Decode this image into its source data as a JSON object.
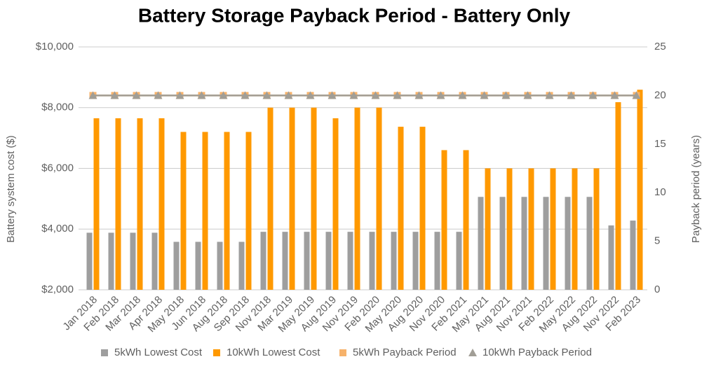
{
  "chart_data": {
    "type": "bar-line",
    "title": "Battery Storage Payback Period - Battery Only",
    "y_label": "Battery system cost ($)",
    "y2_label": "Payback period (years)",
    "categories": [
      "Jan 2018",
      "Feb 2018",
      "Mar 2018",
      "Apr 2018",
      "May 2018",
      "Jun 2018",
      "Aug 2018",
      "Sep 2018",
      "Nov 2018",
      "Mar 2019",
      "May 2019",
      "Aug 2019",
      "Nov 2019",
      "Feb 2020",
      "May 2020",
      "Aug 2020",
      "Nov 2020",
      "Feb 2021",
      "May 2021",
      "Aug 2021",
      "Nov 2021",
      "Feb 2022",
      "May 2022",
      "Aug 2022",
      "Nov 2022",
      "Feb 2023"
    ],
    "series": [
      {
        "name": "5kWh Lowest Cost",
        "type": "bar",
        "color": "#9e9e9e",
        "values": [
          3880,
          3880,
          3880,
          3880,
          3580,
          3580,
          3580,
          3580,
          3910,
          3910,
          3910,
          3910,
          3910,
          3910,
          3910,
          3910,
          3910,
          3910,
          5060,
          5060,
          5060,
          5060,
          5060,
          5060,
          4120,
          4280
        ]
      },
      {
        "name": "10kWh Lowest Cost",
        "type": "bar",
        "color": "#ff9900",
        "values": [
          7650,
          7650,
          7650,
          7650,
          7200,
          7200,
          7200,
          7200,
          8000,
          8000,
          8000,
          7650,
          8000,
          8000,
          7370,
          7370,
          6600,
          6600,
          6000,
          6000,
          6000,
          6000,
          6000,
          6000,
          8180,
          8590
        ]
      },
      {
        "name": "5kWh Payback Period",
        "type": "line",
        "axis": "y2",
        "color": "#f6b26b",
        "marker": "square",
        "values": [
          20,
          20,
          20,
          20,
          20,
          20,
          20,
          20,
          20,
          20,
          20,
          20,
          20,
          20,
          20,
          20,
          20,
          20,
          20,
          20,
          20,
          20,
          20,
          20,
          20,
          20
        ]
      },
      {
        "name": "10kWh Payback Period",
        "type": "line",
        "axis": "y2",
        "color": "#a19e96",
        "marker": "triangle",
        "values": [
          20,
          20,
          20,
          20,
          20,
          20,
          20,
          20,
          20,
          20,
          20,
          20,
          20,
          20,
          20,
          20,
          20,
          20,
          20,
          20,
          20,
          20,
          20,
          20,
          20,
          20
        ]
      }
    ],
    "ylim": [
      2000,
      10000
    ],
    "yticks": [
      {
        "value": 2000,
        "label": "$2,000"
      },
      {
        "value": 4000,
        "label": "$4,000"
      },
      {
        "value": 6000,
        "label": "$6,000"
      },
      {
        "value": 8000,
        "label": "$8,000"
      },
      {
        "value": 10000,
        "label": "$10,000"
      }
    ],
    "y2lim": [
      0,
      25
    ],
    "y2ticks": [
      0,
      5,
      10,
      15,
      20,
      25
    ],
    "grid": true,
    "legend": "bottom"
  }
}
